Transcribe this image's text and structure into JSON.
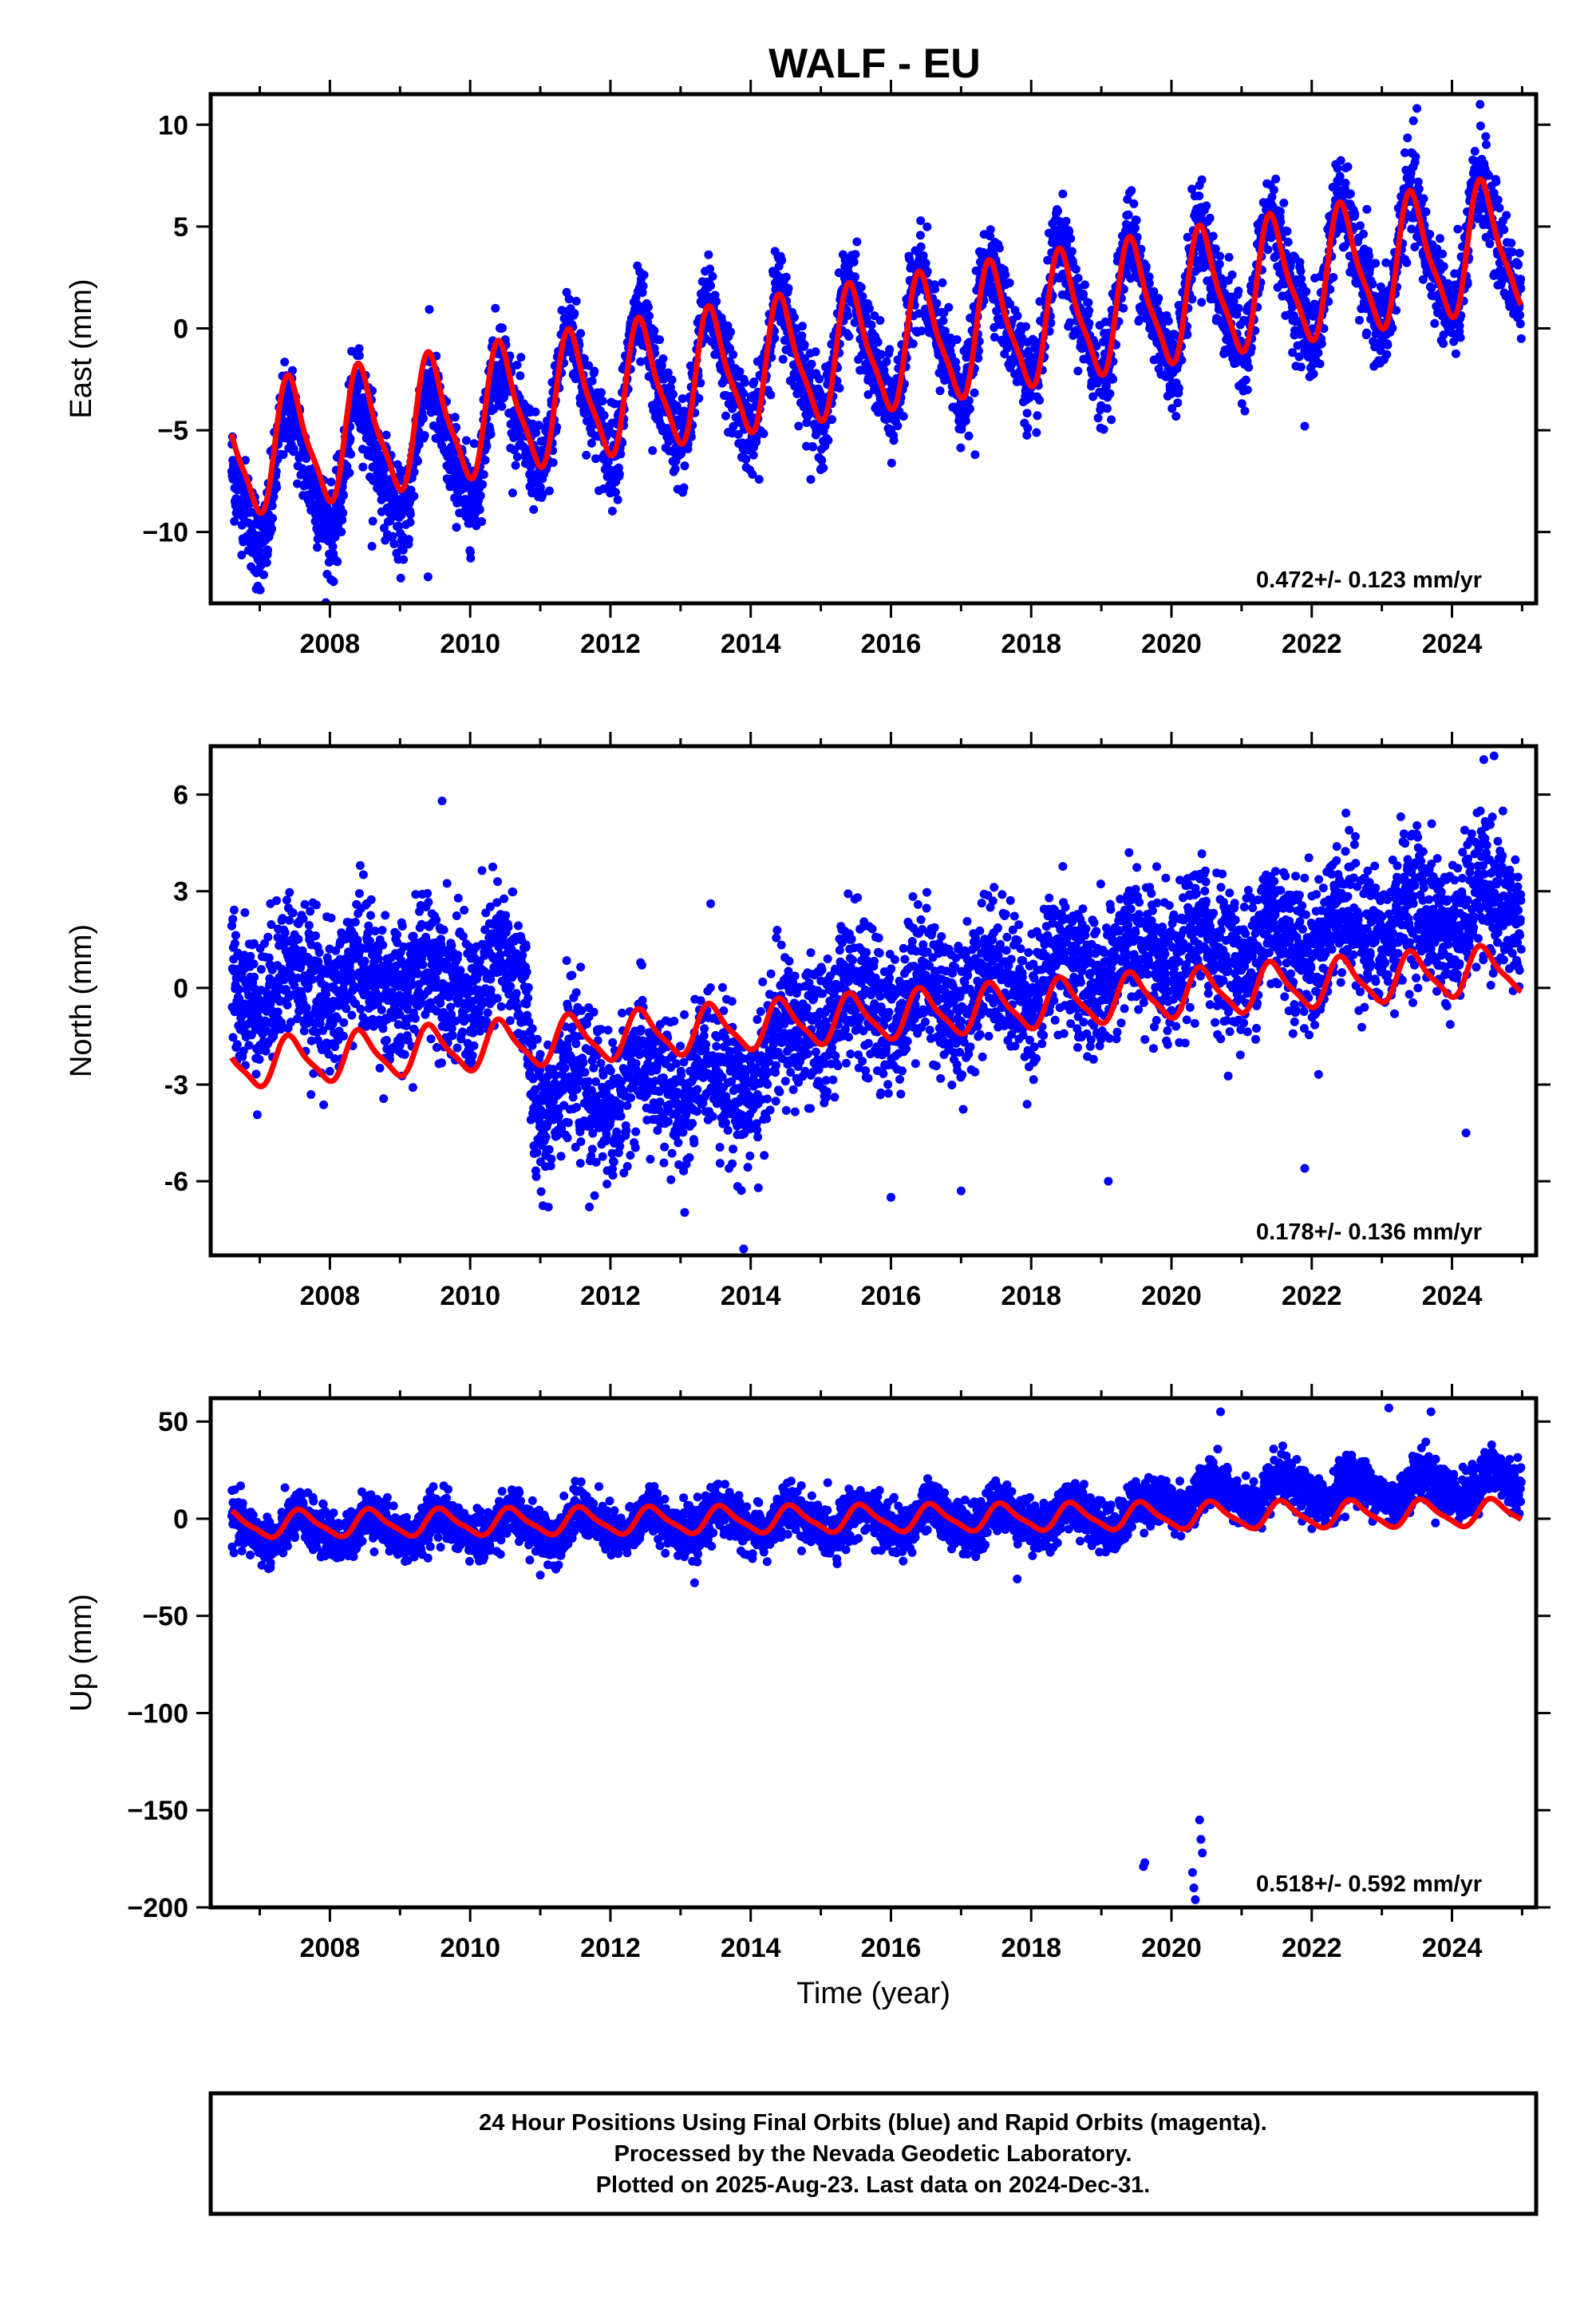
{
  "title": "WALF - EU",
  "footer": {
    "lines": [
      "24 Hour Positions Using Final Orbits (blue) and Rapid Orbits (magenta).",
      "Processed by the Nevada Geodetic Laboratory.",
      "Plotted on 2025-Aug-23. Last data on 2024-Dec-31."
    ]
  },
  "colors": {
    "points": "#0000ff",
    "model": "#ff0000",
    "frame": "#000000"
  },
  "chart_data": [
    {
      "type": "scatter",
      "component": "east",
      "ylabel": "East (mm)",
      "xlabel": "",
      "xlim": [
        2006.3,
        2025.2
      ],
      "ylim": [
        -13.5,
        11.5
      ],
      "yticks": [
        -10,
        -5,
        0,
        5,
        10
      ],
      "ytick_labels": [
        "−10",
        "−5",
        "0",
        "5",
        "10"
      ],
      "xticks": [
        2008,
        2010,
        2012,
        2014,
        2016,
        2018,
        2020,
        2022,
        2024
      ],
      "xtick_labels": [
        "2008",
        "2010",
        "2012",
        "2014",
        "2016",
        "2018",
        "2020",
        "2022",
        "2024"
      ],
      "rate_text": "0.472+/- 0.123 mm/yr",
      "data_range": [
        2006.6,
        2024.99
      ],
      "model": {
        "series": "Model",
        "color": "#ff0000",
        "start_value": -6.2,
        "end_value": 4.2,
        "annual_amplitude": 3.0,
        "peak_phase": 0.45
      },
      "scatter_spread": 1.1,
      "scatter_offset": [
        [
          2006.6,
          -1.5
        ],
        [
          2009.5,
          -1.5
        ],
        [
          2010.8,
          -0.5
        ],
        [
          2011.2,
          0
        ],
        [
          2025.0,
          0
        ]
      ],
      "outliers": [
        [
          2006.95,
          -12.8
        ],
        [
          2007.1,
          -11.5
        ],
        [
          2008.6,
          -10.7
        ],
        [
          2009.4,
          -12.2
        ],
        [
          2012.6,
          -6.0
        ],
        [
          2017.2,
          -6.2
        ],
        [
          2021.9,
          -4.8
        ],
        [
          2024.4,
          11.0
        ],
        [
          2023.5,
          10.8
        ]
      ]
    },
    {
      "type": "scatter",
      "component": "north",
      "ylabel": "North (mm)",
      "xlabel": "",
      "xlim": [
        2006.3,
        2025.2
      ],
      "ylim": [
        -8.3,
        7.5
      ],
      "yticks": [
        -6,
        -3,
        0,
        3,
        6
      ],
      "ytick_labels": [
        "-6",
        "-3",
        "0",
        "3",
        "6"
      ],
      "xticks": [
        2008,
        2010,
        2012,
        2014,
        2016,
        2018,
        2020,
        2022,
        2024
      ],
      "xtick_labels": [
        "2008",
        "2010",
        "2012",
        "2014",
        "2016",
        "2018",
        "2020",
        "2022",
        "2024"
      ],
      "rate_text": "0.178+/- 0.136 mm/yr",
      "data_range": [
        2006.6,
        2024.99
      ],
      "model": {
        "series": "Model",
        "color": "#ff0000",
        "start_value": -2.4,
        "end_value": 0.6,
        "annual_amplitude": 0.7,
        "peak_phase": 0.45
      },
      "scatter_spread": 1.1,
      "scatter_offset": [
        [
          2006.6,
          2.5
        ],
        [
          2010.8,
          2.0
        ],
        [
          2010.9,
          -1.6
        ],
        [
          2014.0,
          -1.6
        ],
        [
          2015.0,
          0.3
        ],
        [
          2025.0,
          2.0
        ]
      ],
      "outliers": [
        [
          2013.9,
          -8.1
        ],
        [
          2011.7,
          -6.8
        ],
        [
          2016.0,
          -6.5
        ],
        [
          2017.0,
          -6.3
        ],
        [
          2019.1,
          -6.0
        ],
        [
          2024.6,
          7.2
        ],
        [
          2009.6,
          5.8
        ],
        [
          2024.2,
          -4.5
        ],
        [
          2021.9,
          -5.6
        ]
      ]
    },
    {
      "type": "scatter",
      "component": "up",
      "ylabel": "Up (mm)",
      "xlabel": "Time (year)",
      "xlim": [
        2006.3,
        2025.2
      ],
      "ylim": [
        -200,
        62
      ],
      "yticks": [
        -200,
        -150,
        -100,
        -50,
        0,
        50
      ],
      "ytick_labels": [
        "−200",
        "−150",
        "−100",
        "−50",
        "0",
        "50"
      ],
      "xticks": [
        2008,
        2010,
        2012,
        2014,
        2016,
        2018,
        2020,
        2022,
        2024
      ],
      "xtick_labels": [
        "2008",
        "2010",
        "2012",
        "2014",
        "2016",
        "2018",
        "2020",
        "2022",
        "2024"
      ],
      "rate_text": "0.518+/- 0.592 mm/yr",
      "data_range": [
        2006.6,
        2024.99
      ],
      "model": {
        "series": "Model",
        "color": "#ff0000",
        "start_value": -3.0,
        "end_value": 3.0,
        "annual_amplitude": 6.5,
        "peak_phase": 0.6
      },
      "scatter_spread": 6,
      "scatter_offset": [
        [
          2006.6,
          -3
        ],
        [
          2019.5,
          0
        ],
        [
          2020.0,
          10
        ],
        [
          2025.0,
          15
        ]
      ],
      "outliers": [
        [
          2019.6,
          -179
        ],
        [
          2019.62,
          -177
        ],
        [
          2020.3,
          -182
        ],
        [
          2020.32,
          -190
        ],
        [
          2020.34,
          -196
        ],
        [
          2020.4,
          -155
        ],
        [
          2020.42,
          -165
        ],
        [
          2020.44,
          -172
        ],
        [
          2013.2,
          -33
        ],
        [
          2011.0,
          -29
        ],
        [
          2017.8,
          -31
        ],
        [
          2020.7,
          55
        ],
        [
          2023.1,
          57
        ],
        [
          2023.7,
          55
        ]
      ]
    }
  ]
}
